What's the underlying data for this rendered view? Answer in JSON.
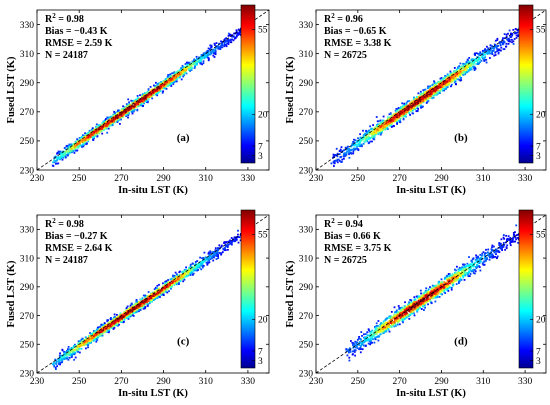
{
  "chart_data": [
    {
      "type": "scatter",
      "panel_label": "(a)",
      "xlabel": "In-situ LST (K)",
      "ylabel": "Fused LST (K)",
      "xlim": [
        230,
        340
      ],
      "ylim": [
        230,
        340
      ],
      "xticks": [
        230,
        250,
        270,
        290,
        310,
        330
      ],
      "yticks": [
        230,
        250,
        270,
        290,
        310,
        330
      ],
      "stats": {
        "r2": "0.98",
        "bias": "Bias = −0.43 K",
        "rmse": "RMSE = 2.59 K",
        "n": "N = 24187"
      },
      "colorbar_ticks": [
        3,
        7,
        20,
        55
      ],
      "colorbar_max": 65,
      "cloud": {
        "x_range": [
          238,
          330
        ],
        "bias": -0.43,
        "spread": 2.59,
        "dense_x": [
          248,
          300
        ]
      }
    },
    {
      "type": "scatter",
      "panel_label": "(b)",
      "xlabel": "In-situ LST (K)",
      "ylabel": "Fused LST (K)",
      "xlim": [
        230,
        340
      ],
      "ylim": [
        230,
        340
      ],
      "xticks": [
        230,
        250,
        270,
        290,
        310,
        330
      ],
      "yticks": [
        230,
        250,
        270,
        290,
        310,
        330
      ],
      "stats": {
        "r2": "0.96",
        "bias": "Bias = −0.65 K",
        "rmse": "RMSE = 3.38 K",
        "n": "N = 26725"
      },
      "colorbar_ticks": [
        3,
        7,
        20,
        55
      ],
      "colorbar_max": 65,
      "cloud": {
        "x_range": [
          238,
          328
        ],
        "bias": -0.65,
        "spread": 3.38,
        "dense_x": [
          258,
          300
        ]
      }
    },
    {
      "type": "scatter",
      "panel_label": "(c)",
      "xlabel": "In-situ LST (K)",
      "ylabel": "Fused LST (K)",
      "xlim": [
        230,
        340
      ],
      "ylim": [
        230,
        340
      ],
      "xticks": [
        230,
        250,
        270,
        290,
        310,
        330
      ],
      "yticks": [
        230,
        250,
        270,
        290,
        310,
        330
      ],
      "stats": {
        "r2": "0.98",
        "bias": "Bias = −0.27 K",
        "rmse": "RMSE = 2.64 K",
        "n": "N = 24187"
      },
      "colorbar_ticks": [
        3,
        7,
        20,
        55
      ],
      "colorbar_max": 65,
      "cloud": {
        "x_range": [
          238,
          330
        ],
        "bias": -0.27,
        "spread": 2.64,
        "dense_x": [
          250,
          300
        ]
      }
    },
    {
      "type": "scatter",
      "panel_label": "(d)",
      "xlabel": "In-situ LST (K)",
      "ylabel": "Fused LST (K)",
      "xlim": [
        230,
        340
      ],
      "ylim": [
        230,
        340
      ],
      "xticks": [
        230,
        250,
        270,
        290,
        310,
        330
      ],
      "yticks": [
        230,
        250,
        270,
        290,
        310,
        330
      ],
      "stats": {
        "r2": "0.94",
        "bias": "Bias = 0.66 K",
        "rmse": "RMSE = 3.75 K",
        "n": "N = 26725"
      },
      "colorbar_ticks": [
        3,
        7,
        20,
        55
      ],
      "colorbar_max": 65,
      "cloud": {
        "x_range": [
          245,
          328
        ],
        "bias": 0.66,
        "spread": 3.75,
        "dense_x": [
          262,
          298
        ]
      }
    }
  ]
}
